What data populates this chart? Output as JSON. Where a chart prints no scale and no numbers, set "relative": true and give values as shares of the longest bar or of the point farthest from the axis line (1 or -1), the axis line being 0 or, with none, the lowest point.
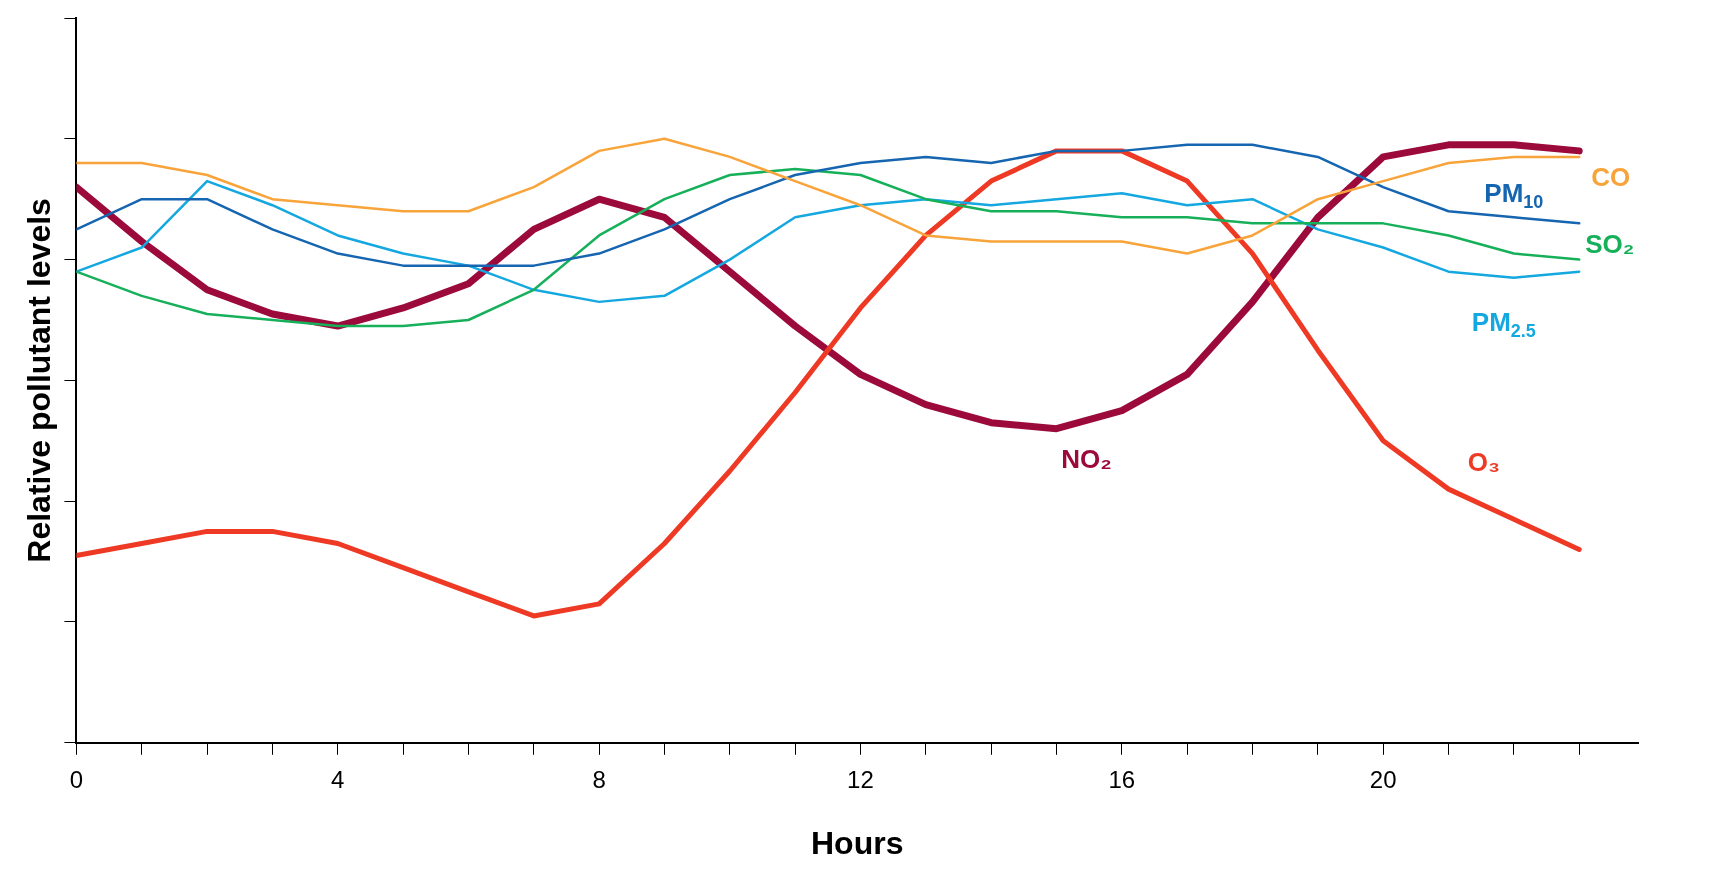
{
  "chart_data": {
    "type": "line",
    "relative": true,
    "xlabel": "Hours",
    "ylabel": "Relative pollutant levels",
    "x": [
      0,
      1,
      2,
      3,
      4,
      5,
      6,
      7,
      8,
      9,
      10,
      11,
      12,
      13,
      14,
      15,
      16,
      17,
      18,
      19,
      20,
      21,
      22,
      23
    ],
    "xlim": [
      0,
      23.9
    ],
    "xticks": [
      0,
      {
        "value": 1,
        "label": null
      },
      {
        "value": 2,
        "label": null
      },
      {
        "value": 3,
        "label": null
      },
      4,
      {
        "value": 5,
        "label": null
      },
      {
        "value": 6,
        "label": null
      },
      {
        "value": 7,
        "label": null
      },
      8,
      {
        "value": 9,
        "label": null
      },
      {
        "value": 10,
        "label": null
      },
      {
        "value": 11,
        "label": null
      },
      12,
      {
        "value": 13,
        "label": null
      },
      {
        "value": 14,
        "label": null
      },
      {
        "value": 15,
        "label": null
      },
      16,
      {
        "value": 17,
        "label": null
      },
      {
        "value": 18,
        "label": null
      },
      {
        "value": 19,
        "label": null
      },
      20,
      {
        "value": 21,
        "label": null
      },
      {
        "value": 22,
        "label": null
      },
      {
        "value": 23,
        "label": null
      }
    ],
    "grid": false,
    "legend": false,
    "marker": "none",
    "line_style": "solid",
    "series": [
      {
        "name": "CO",
        "color": "#f8a43a",
        "values": [
          0.96,
          0.96,
          0.94,
          0.9,
          0.89,
          0.88,
          0.88,
          0.92,
          0.98,
          1,
          0.97,
          0.93,
          0.89,
          0.84,
          0.83,
          0.83,
          0.83,
          0.81,
          0.84,
          0.9,
          0.93,
          0.96,
          0.97,
          0.97
        ]
      },
      {
        "name": "PM$_{10}$",
        "color": "#1565b0",
        "values": [
          0.85,
          0.9,
          0.9,
          0.85,
          0.81,
          0.79,
          0.79,
          0.79,
          0.81,
          0.85,
          0.9,
          0.94,
          0.96,
          0.97,
          0.96,
          0.98,
          0.98,
          0.99,
          0.99,
          0.97,
          0.92,
          0.88,
          0.87,
          0.86
        ]
      },
      {
        "name": "SO₂",
        "color": "#17b05a",
        "values": [
          0.78,
          0.74,
          0.71,
          0.7,
          0.69,
          0.69,
          0.7,
          0.75,
          0.84,
          0.9,
          0.94,
          0.95,
          0.94,
          0.9,
          0.88,
          0.88,
          0.87,
          0.87,
          0.86,
          0.86,
          0.86,
          0.84,
          0.81,
          0.8
        ]
      },
      {
        "name": "PM$_{2.5}$",
        "color": "#15a8e0",
        "values": [
          0.78,
          0.82,
          0.93,
          0.89,
          0.84,
          0.81,
          0.79,
          0.75,
          0.73,
          0.74,
          0.8,
          0.87,
          0.89,
          0.9,
          0.89,
          0.9,
          0.91,
          0.89,
          0.9,
          0.85,
          0.82,
          0.78,
          0.77,
          0.78
        ]
      },
      {
        "name": "O₃",
        "color": "#ee3a24",
        "values": [
          0.31,
          0.33,
          0.35,
          0.35,
          0.33,
          0.29,
          0.25,
          0.21,
          0.23,
          0.33,
          0.45,
          0.58,
          0.72,
          0.84,
          0.93,
          0.98,
          0.98,
          0.93,
          0.81,
          0.65,
          0.5,
          0.42,
          0.37,
          0.32
        ]
      },
      {
        "name": "NO₂",
        "color": "#9b0a3a",
        "values": [
          0.92,
          0.83,
          0.75,
          0.71,
          0.69,
          0.72,
          0.76,
          0.85,
          0.9,
          0.87,
          0.78,
          0.69,
          0.61,
          0.56,
          0.53,
          0.52,
          0.55,
          0.61,
          0.73,
          0.87,
          0.97,
          0.99,
          0.99,
          0.98
        ]
      }
    ]
  }
}
